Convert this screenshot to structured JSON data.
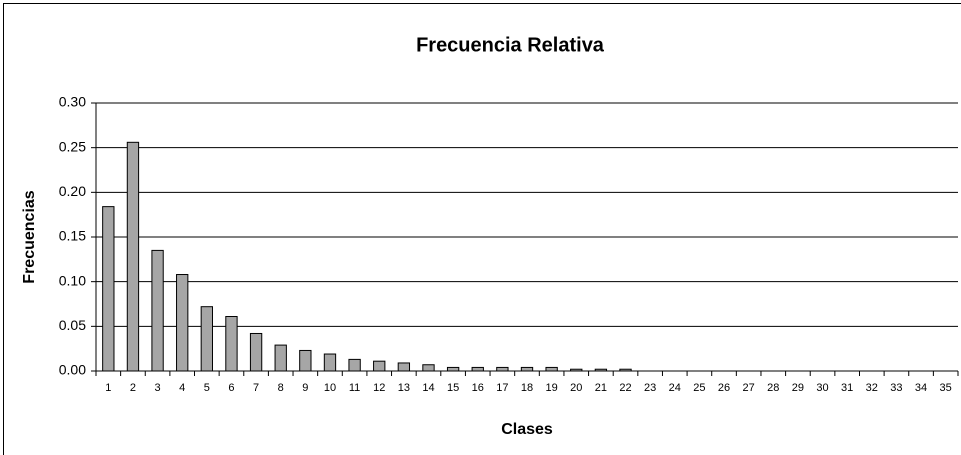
{
  "chart_data": {
    "type": "bar",
    "title": "Frecuencia Relativa",
    "x_label": "Clases",
    "y_label": "Frecuencias",
    "categories": [
      "1",
      "2",
      "3",
      "4",
      "5",
      "6",
      "7",
      "8",
      "9",
      "10",
      "11",
      "12",
      "13",
      "14",
      "15",
      "16",
      "17",
      "18",
      "19",
      "20",
      "21",
      "22",
      "23",
      "24",
      "25",
      "26",
      "27",
      "28",
      "29",
      "30",
      "31",
      "32",
      "33",
      "34",
      "35"
    ],
    "values": [
      0.184,
      0.256,
      0.135,
      0.108,
      0.072,
      0.061,
      0.042,
      0.029,
      0.023,
      0.019,
      0.013,
      0.011,
      0.009,
      0.007,
      0.004,
      0.004,
      0.004,
      0.004,
      0.004,
      0.002,
      0.002,
      0.002,
      0,
      0,
      0,
      0,
      0,
      0,
      0,
      0,
      0,
      0,
      0,
      0,
      0
    ],
    "color": "#a6a6a6",
    "ylim": [
      0,
      0.3
    ],
    "yticks": [
      {
        "value": 0,
        "label": "0.00"
      },
      {
        "value": 0.05,
        "label": "0.05"
      },
      {
        "value": 0.1,
        "label": "0.10"
      },
      {
        "value": 0.15,
        "label": "0.15"
      },
      {
        "value": 0.2,
        "label": "0.20"
      },
      {
        "value": 0.25,
        "label": "0.25"
      },
      {
        "value": 0.3,
        "label": "0.30"
      }
    ],
    "grid": true
  }
}
